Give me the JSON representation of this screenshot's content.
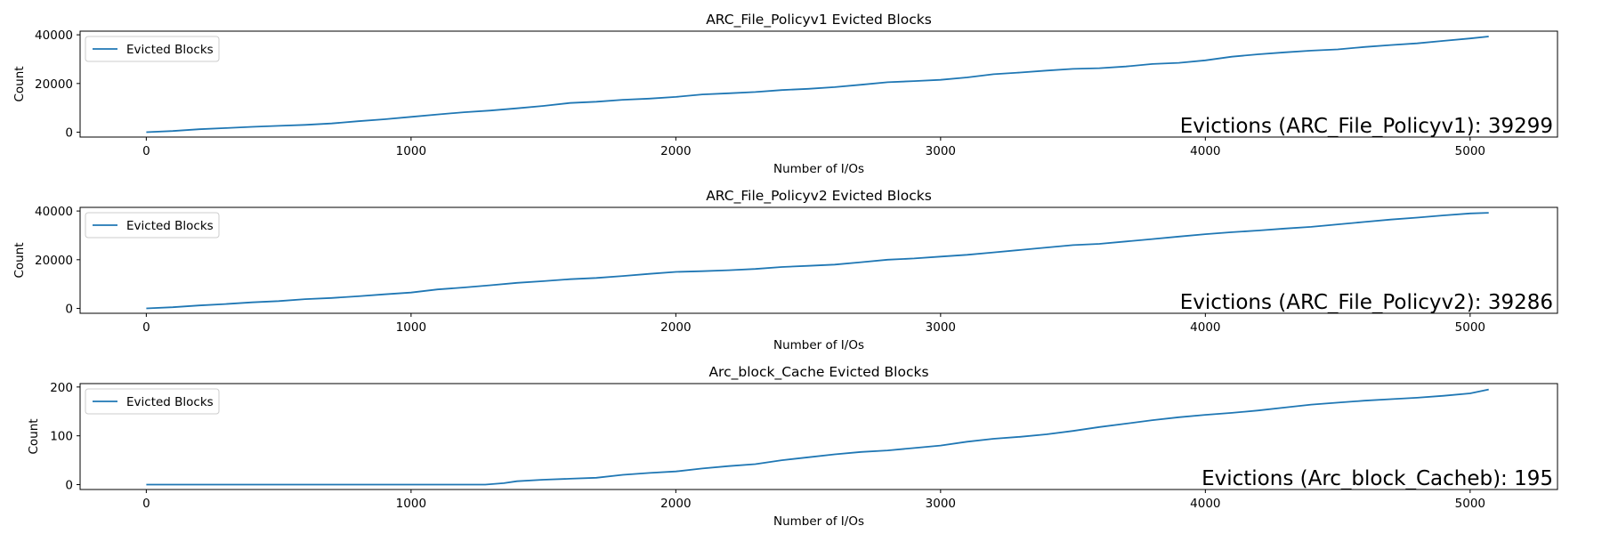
{
  "chart_data": [
    {
      "type": "line",
      "title": "ARC_File_Policyv1 Evicted Blocks",
      "xlabel": "Number of I/Os",
      "ylabel": "Count",
      "xlim": [
        -250,
        5330
      ],
      "ylim": [
        -2000,
        41500
      ],
      "xticks": [
        0,
        1000,
        2000,
        3000,
        4000,
        5000
      ],
      "xtick_labels": [
        "0",
        "1000",
        "2000",
        "3000",
        "4000",
        "5000"
      ],
      "yticks": [
        0,
        20000,
        40000
      ],
      "ytick_labels": [
        "0",
        "20000",
        "40000"
      ],
      "legend": {
        "position": "upper-left",
        "label": "Evicted Blocks"
      },
      "annotation": "Evictions (ARC_File_Policyv1): 39299",
      "color": "#1f77b4",
      "series": [
        {
          "name": "Evicted Blocks",
          "x": [
            0,
            100,
            200,
            300,
            400,
            500,
            600,
            700,
            800,
            900,
            1000,
            1100,
            1200,
            1300,
            1400,
            1500,
            1600,
            1700,
            1800,
            1900,
            2000,
            2100,
            2200,
            2300,
            2400,
            2500,
            2600,
            2700,
            2800,
            2900,
            3000,
            3100,
            3200,
            3300,
            3400,
            3500,
            3600,
            3700,
            3800,
            3900,
            4000,
            4100,
            4200,
            4300,
            4400,
            4500,
            4600,
            4700,
            4800,
            4900,
            5000,
            5070
          ],
          "y": [
            0,
            500,
            1200,
            1700,
            2200,
            2600,
            3000,
            3600,
            4500,
            5300,
            6300,
            7300,
            8200,
            8900,
            9800,
            10800,
            12000,
            12500,
            13300,
            13800,
            14500,
            15500,
            16000,
            16500,
            17300,
            17800,
            18500,
            19500,
            20500,
            21000,
            21500,
            22500,
            23800,
            24500,
            25300,
            26000,
            26300,
            27000,
            28000,
            28500,
            29500,
            31000,
            32000,
            32800,
            33500,
            34000,
            35000,
            35800,
            36500,
            37500,
            38500,
            39299
          ]
        }
      ]
    },
    {
      "type": "line",
      "title": "ARC_File_Policyv2 Evicted Blocks",
      "xlabel": "Number of I/Os",
      "ylabel": "Count",
      "xlim": [
        -250,
        5330
      ],
      "ylim": [
        -2000,
        41500
      ],
      "xticks": [
        0,
        1000,
        2000,
        3000,
        4000,
        5000
      ],
      "xtick_labels": [
        "0",
        "1000",
        "2000",
        "3000",
        "4000",
        "5000"
      ],
      "yticks": [
        0,
        20000,
        40000
      ],
      "ytick_labels": [
        "0",
        "20000",
        "40000"
      ],
      "legend": {
        "position": "upper-left",
        "label": "Evicted Blocks"
      },
      "annotation": "Evictions (ARC_File_Policyv2): 39286",
      "color": "#1f77b4",
      "series": [
        {
          "name": "Evicted Blocks",
          "x": [
            0,
            100,
            200,
            300,
            400,
            500,
            600,
            700,
            800,
            900,
            1000,
            1100,
            1200,
            1300,
            1400,
            1500,
            1600,
            1700,
            1800,
            1900,
            2000,
            2100,
            2200,
            2300,
            2400,
            2500,
            2600,
            2700,
            2800,
            2900,
            3000,
            3100,
            3200,
            3300,
            3400,
            3500,
            3600,
            3700,
            3800,
            3900,
            4000,
            4100,
            4200,
            4300,
            4400,
            4500,
            4600,
            4700,
            4800,
            4900,
            5000,
            5070
          ],
          "y": [
            0,
            500,
            1200,
            1800,
            2500,
            3000,
            3800,
            4300,
            5000,
            5800,
            6500,
            7800,
            8600,
            9500,
            10500,
            11200,
            12000,
            12500,
            13300,
            14200,
            15000,
            15300,
            15700,
            16200,
            17000,
            17500,
            18000,
            19000,
            20000,
            20500,
            21300,
            22000,
            23000,
            24000,
            25000,
            26000,
            26500,
            27500,
            28500,
            29500,
            30500,
            31300,
            32000,
            32800,
            33500,
            34500,
            35500,
            36500,
            37300,
            38200,
            39000,
            39286
          ]
        }
      ]
    },
    {
      "type": "line",
      "title": "Arc_block_Cache Evicted Blocks",
      "xlabel": "Number of I/Os",
      "ylabel": "Count",
      "xlim": [
        -250,
        5330
      ],
      "ylim": [
        -10,
        207
      ],
      "xticks": [
        0,
        1000,
        2000,
        3000,
        4000,
        5000
      ],
      "xtick_labels": [
        "0",
        "1000",
        "2000",
        "3000",
        "4000",
        "5000"
      ],
      "yticks": [
        0,
        100,
        200
      ],
      "ytick_labels": [
        "0",
        "100",
        "200"
      ],
      "legend": {
        "position": "upper-left",
        "label": "Evicted Blocks"
      },
      "annotation": "Evictions (Arc_block_Cacheb): 195",
      "color": "#1f77b4",
      "series": [
        {
          "name": "Evicted Blocks",
          "x": [
            0,
            200,
            400,
            600,
            800,
            1000,
            1200,
            1280,
            1350,
            1400,
            1500,
            1600,
            1700,
            1800,
            1900,
            2000,
            2100,
            2200,
            2300,
            2400,
            2500,
            2600,
            2700,
            2800,
            2900,
            3000,
            3100,
            3200,
            3300,
            3400,
            3500,
            3600,
            3700,
            3800,
            3900,
            4000,
            4100,
            4200,
            4300,
            4400,
            4500,
            4600,
            4700,
            4800,
            4900,
            5000,
            5070
          ],
          "y": [
            0,
            0,
            0,
            0,
            0,
            0,
            0,
            0,
            3,
            7,
            10,
            12,
            14,
            20,
            24,
            27,
            33,
            38,
            42,
            50,
            56,
            62,
            67,
            70,
            75,
            80,
            88,
            94,
            98,
            103,
            110,
            118,
            125,
            132,
            138,
            143,
            147,
            152,
            158,
            164,
            168,
            172,
            175,
            178,
            182,
            187,
            195
          ]
        }
      ]
    }
  ]
}
